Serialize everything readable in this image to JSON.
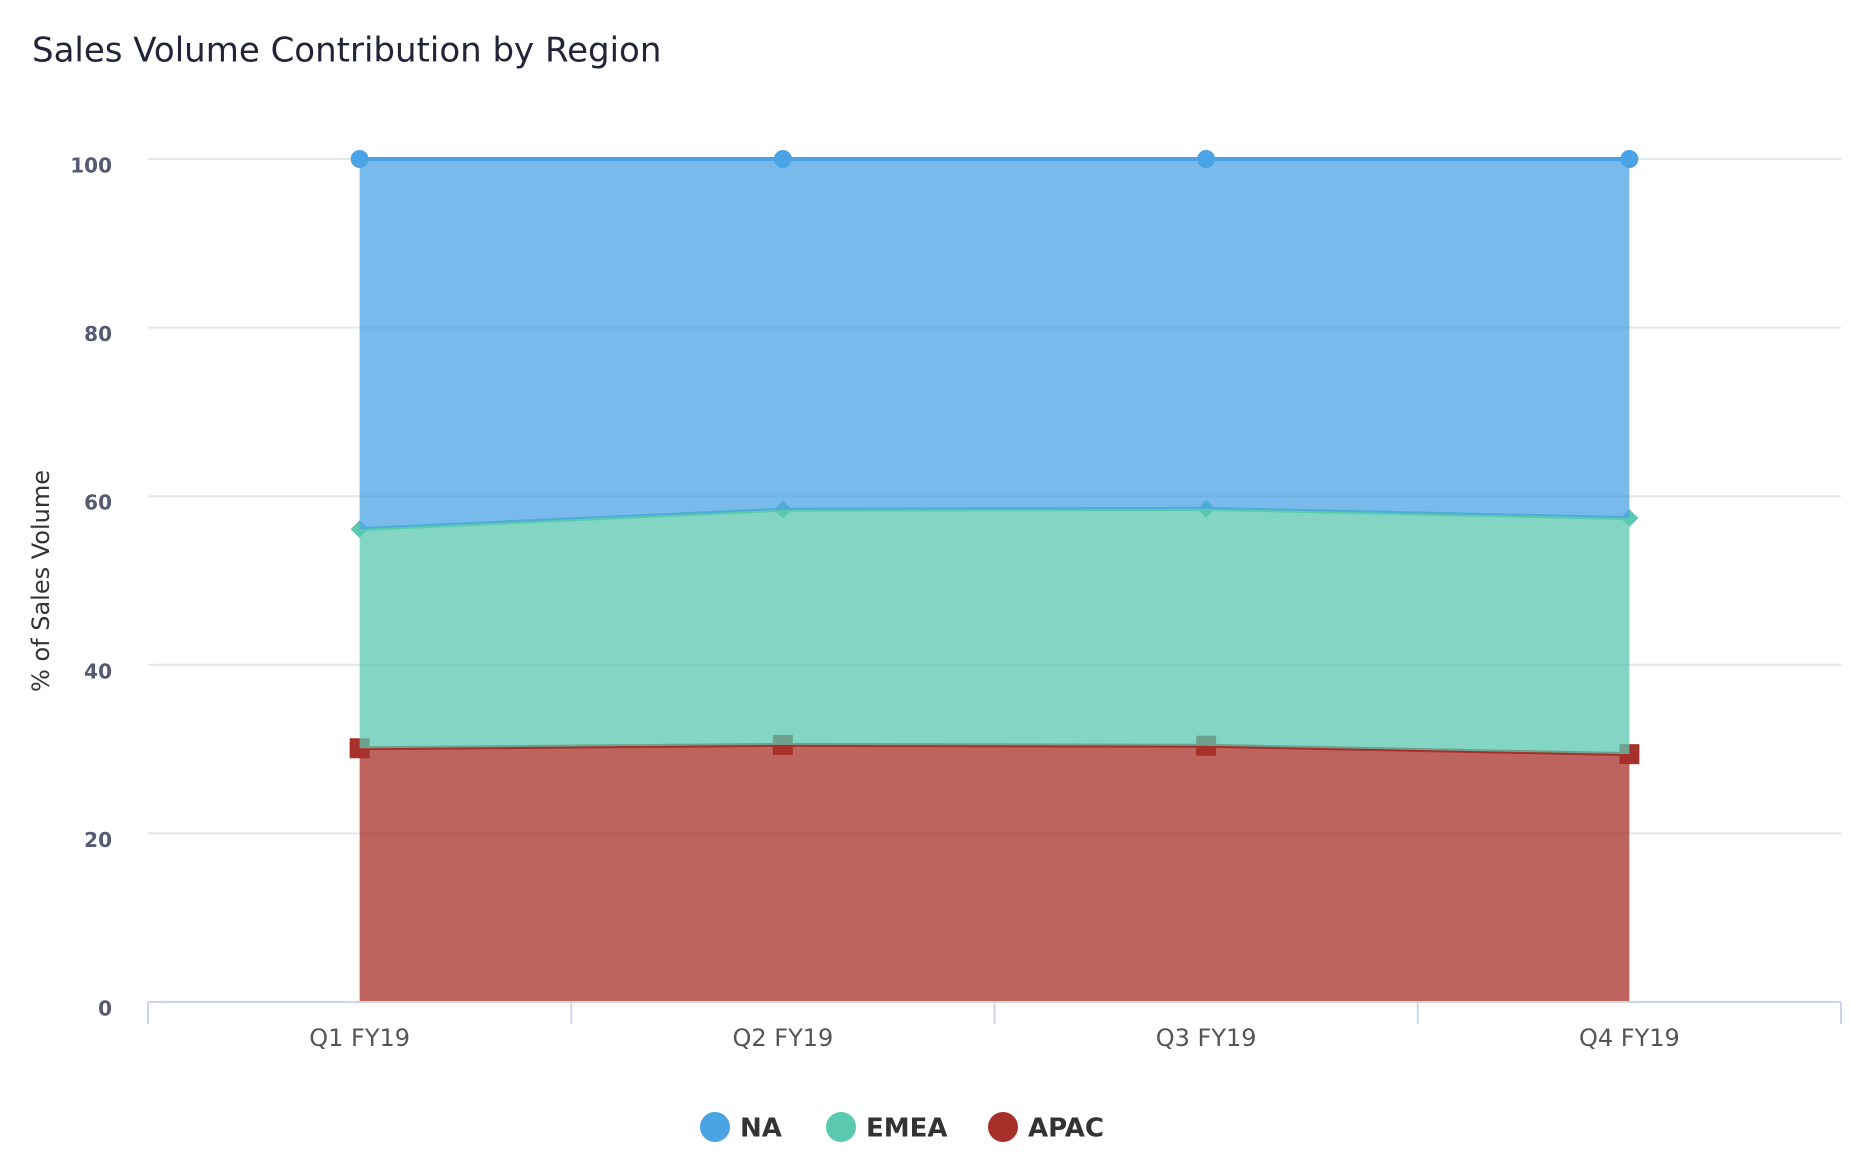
{
  "chart_data": {
    "type": "stacked_area",
    "title": "Sales Volume Contribution by Region",
    "y_label": "% of Sales Volume",
    "categories": [
      "Q1 FY19",
      "Q2 FY19",
      "Q3 FY19",
      "Q4 FY19"
    ],
    "series": [
      {
        "name": "NA",
        "color": "#4aa3e4",
        "marker": "circle",
        "values": [
          43.9,
          41.6,
          41.5,
          42.6
        ]
      },
      {
        "name": "EMEA",
        "color": "#5bc8b0",
        "marker": "diamond",
        "values": [
          26.0,
          27.9,
          28.1,
          28.0
        ]
      },
      {
        "name": "APAC",
        "color": "#a8302a",
        "marker": "square",
        "values": [
          30.1,
          30.5,
          30.4,
          29.4
        ]
      }
    ],
    "ylim": [
      0,
      100
    ],
    "yticks": [
      0,
      20,
      40,
      60,
      80,
      100
    ],
    "grid": true,
    "legend": "bottom"
  }
}
